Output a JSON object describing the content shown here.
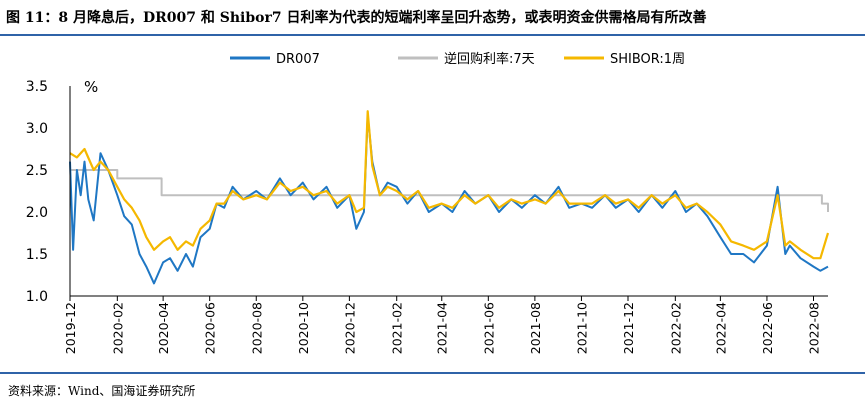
{
  "header": {
    "title": "图 11：8 月降息后，DR007 和 Shibor7 日利率为代表的短端利率呈回升态势，或表明资金供需格局有所改善"
  },
  "footer": {
    "source": "资料来源：Wind、国海证券研究所"
  },
  "colors": {
    "accent": "#2f63a8",
    "dr007": "#1f77c4",
    "reverse_repo": "#bfbfbf",
    "shibor": "#f5b800"
  },
  "chart_data": {
    "type": "line",
    "ylabel": "%",
    "ylim": [
      1.0,
      3.5
    ],
    "yticks": [
      "3.5",
      "3.0",
      "2.5",
      "2.0",
      "1.5",
      "1.0"
    ],
    "ytick_values": [
      3.5,
      3.0,
      2.5,
      2.0,
      1.5,
      1.0
    ],
    "xlim": [
      "2019-12-01",
      "2022-08-20"
    ],
    "xticks": [
      "2019-12",
      "2020-02",
      "2020-04",
      "2020-06",
      "2020-08",
      "2020-10",
      "2020-12",
      "2021-02",
      "2021-04",
      "2021-06",
      "2021-08",
      "2021-10",
      "2021-12",
      "2022-02",
      "2022-04",
      "2022-06",
      "2022-08"
    ],
    "legend_position": "top",
    "grid": false,
    "series": [
      {
        "name": "DR007",
        "color": "#1f77c4",
        "x": [
          "2019-12-01",
          "2019-12-05",
          "2019-12-10",
          "2019-12-15",
          "2019-12-20",
          "2019-12-25",
          "2020-01-01",
          "2020-01-10",
          "2020-01-20",
          "2020-02-01",
          "2020-02-10",
          "2020-02-20",
          "2020-03-01",
          "2020-03-10",
          "2020-03-20",
          "2020-04-01",
          "2020-04-10",
          "2020-04-20",
          "2020-05-01",
          "2020-05-10",
          "2020-05-20",
          "2020-06-01",
          "2020-06-10",
          "2020-06-20",
          "2020-07-01",
          "2020-07-15",
          "2020-08-01",
          "2020-08-15",
          "2020-09-01",
          "2020-09-15",
          "2020-10-01",
          "2020-10-15",
          "2020-11-01",
          "2020-11-15",
          "2020-12-01",
          "2020-12-10",
          "2020-12-20",
          "2020-12-25",
          "2020-12-31",
          "2021-01-10",
          "2021-01-20",
          "2021-02-01",
          "2021-02-15",
          "2021-03-01",
          "2021-03-15",
          "2021-04-01",
          "2021-04-15",
          "2021-05-01",
          "2021-05-15",
          "2021-06-01",
          "2021-06-15",
          "2021-07-01",
          "2021-07-15",
          "2021-08-01",
          "2021-08-15",
          "2021-09-01",
          "2021-09-15",
          "2021-10-01",
          "2021-10-15",
          "2021-11-01",
          "2021-11-15",
          "2021-12-01",
          "2021-12-15",
          "2022-01-01",
          "2022-01-15",
          "2022-02-01",
          "2022-02-15",
          "2022-03-01",
          "2022-03-15",
          "2022-04-01",
          "2022-04-15",
          "2022-05-01",
          "2022-05-15",
          "2022-06-01",
          "2022-06-15",
          "2022-06-25",
          "2022-07-01",
          "2022-07-15",
          "2022-08-01",
          "2022-08-10",
          "2022-08-20"
        ],
        "y": [
          2.6,
          1.55,
          2.5,
          2.2,
          2.6,
          2.15,
          1.9,
          2.7,
          2.5,
          2.2,
          1.95,
          1.85,
          1.5,
          1.35,
          1.15,
          1.4,
          1.45,
          1.3,
          1.5,
          1.35,
          1.7,
          1.8,
          2.1,
          2.05,
          2.3,
          2.15,
          2.25,
          2.15,
          2.4,
          2.2,
          2.35,
          2.15,
          2.3,
          2.05,
          2.2,
          1.8,
          2.0,
          3.15,
          2.6,
          2.2,
          2.35,
          2.3,
          2.1,
          2.25,
          2.0,
          2.1,
          2.0,
          2.25,
          2.1,
          2.2,
          2.0,
          2.15,
          2.05,
          2.2,
          2.1,
          2.3,
          2.05,
          2.1,
          2.05,
          2.2,
          2.05,
          2.15,
          2.0,
          2.2,
          2.05,
          2.25,
          2.0,
          2.1,
          1.95,
          1.7,
          1.5,
          1.5,
          1.4,
          1.6,
          2.3,
          1.5,
          1.6,
          1.45,
          1.35,
          1.3,
          1.35
        ]
      },
      {
        "name": "逆回购利率:7天",
        "color": "#bfbfbf",
        "x": [
          "2019-12-01",
          "2020-02-01",
          "2020-03-30",
          "2022-08-12",
          "2022-08-20"
        ],
        "y": [
          2.5,
          2.4,
          2.2,
          2.1,
          2.0
        ]
      },
      {
        "name": "SHIBOR:1周",
        "color": "#f5b800",
        "x": [
          "2019-12-01",
          "2019-12-10",
          "2019-12-20",
          "2020-01-01",
          "2020-01-10",
          "2020-01-20",
          "2020-02-01",
          "2020-02-10",
          "2020-02-20",
          "2020-03-01",
          "2020-03-10",
          "2020-03-20",
          "2020-04-01",
          "2020-04-10",
          "2020-04-20",
          "2020-05-01",
          "2020-05-10",
          "2020-05-20",
          "2020-06-01",
          "2020-06-10",
          "2020-06-20",
          "2020-07-01",
          "2020-07-15",
          "2020-08-01",
          "2020-08-15",
          "2020-09-01",
          "2020-09-15",
          "2020-10-01",
          "2020-10-15",
          "2020-11-01",
          "2020-11-15",
          "2020-12-01",
          "2020-12-10",
          "2020-12-20",
          "2020-12-25",
          "2020-12-31",
          "2021-01-10",
          "2021-01-20",
          "2021-02-01",
          "2021-02-15",
          "2021-03-01",
          "2021-03-15",
          "2021-04-01",
          "2021-04-15",
          "2021-05-01",
          "2021-05-15",
          "2021-06-01",
          "2021-06-15",
          "2021-07-01",
          "2021-07-15",
          "2021-08-01",
          "2021-08-15",
          "2021-09-01",
          "2021-09-15",
          "2021-10-01",
          "2021-10-15",
          "2021-11-01",
          "2021-11-15",
          "2021-12-01",
          "2021-12-15",
          "2022-01-01",
          "2022-01-15",
          "2022-02-01",
          "2022-02-15",
          "2022-03-01",
          "2022-03-15",
          "2022-04-01",
          "2022-04-15",
          "2022-05-01",
          "2022-05-15",
          "2022-06-01",
          "2022-06-15",
          "2022-06-25",
          "2022-07-01",
          "2022-07-15",
          "2022-08-01",
          "2022-08-10",
          "2022-08-20"
        ],
        "y": [
          2.7,
          2.65,
          2.75,
          2.5,
          2.6,
          2.5,
          2.3,
          2.15,
          2.05,
          1.9,
          1.7,
          1.55,
          1.65,
          1.7,
          1.55,
          1.65,
          1.6,
          1.8,
          1.9,
          2.1,
          2.1,
          2.25,
          2.15,
          2.2,
          2.15,
          2.35,
          2.25,
          2.3,
          2.2,
          2.25,
          2.1,
          2.2,
          2.0,
          2.05,
          3.2,
          2.55,
          2.2,
          2.3,
          2.25,
          2.15,
          2.25,
          2.05,
          2.1,
          2.05,
          2.2,
          2.1,
          2.2,
          2.05,
          2.15,
          2.1,
          2.15,
          2.1,
          2.25,
          2.1,
          2.1,
          2.1,
          2.2,
          2.1,
          2.15,
          2.05,
          2.2,
          2.1,
          2.2,
          2.05,
          2.1,
          2.0,
          1.85,
          1.65,
          1.6,
          1.55,
          1.65,
          2.2,
          1.6,
          1.65,
          1.55,
          1.45,
          1.45,
          1.75
        ]
      }
    ]
  }
}
